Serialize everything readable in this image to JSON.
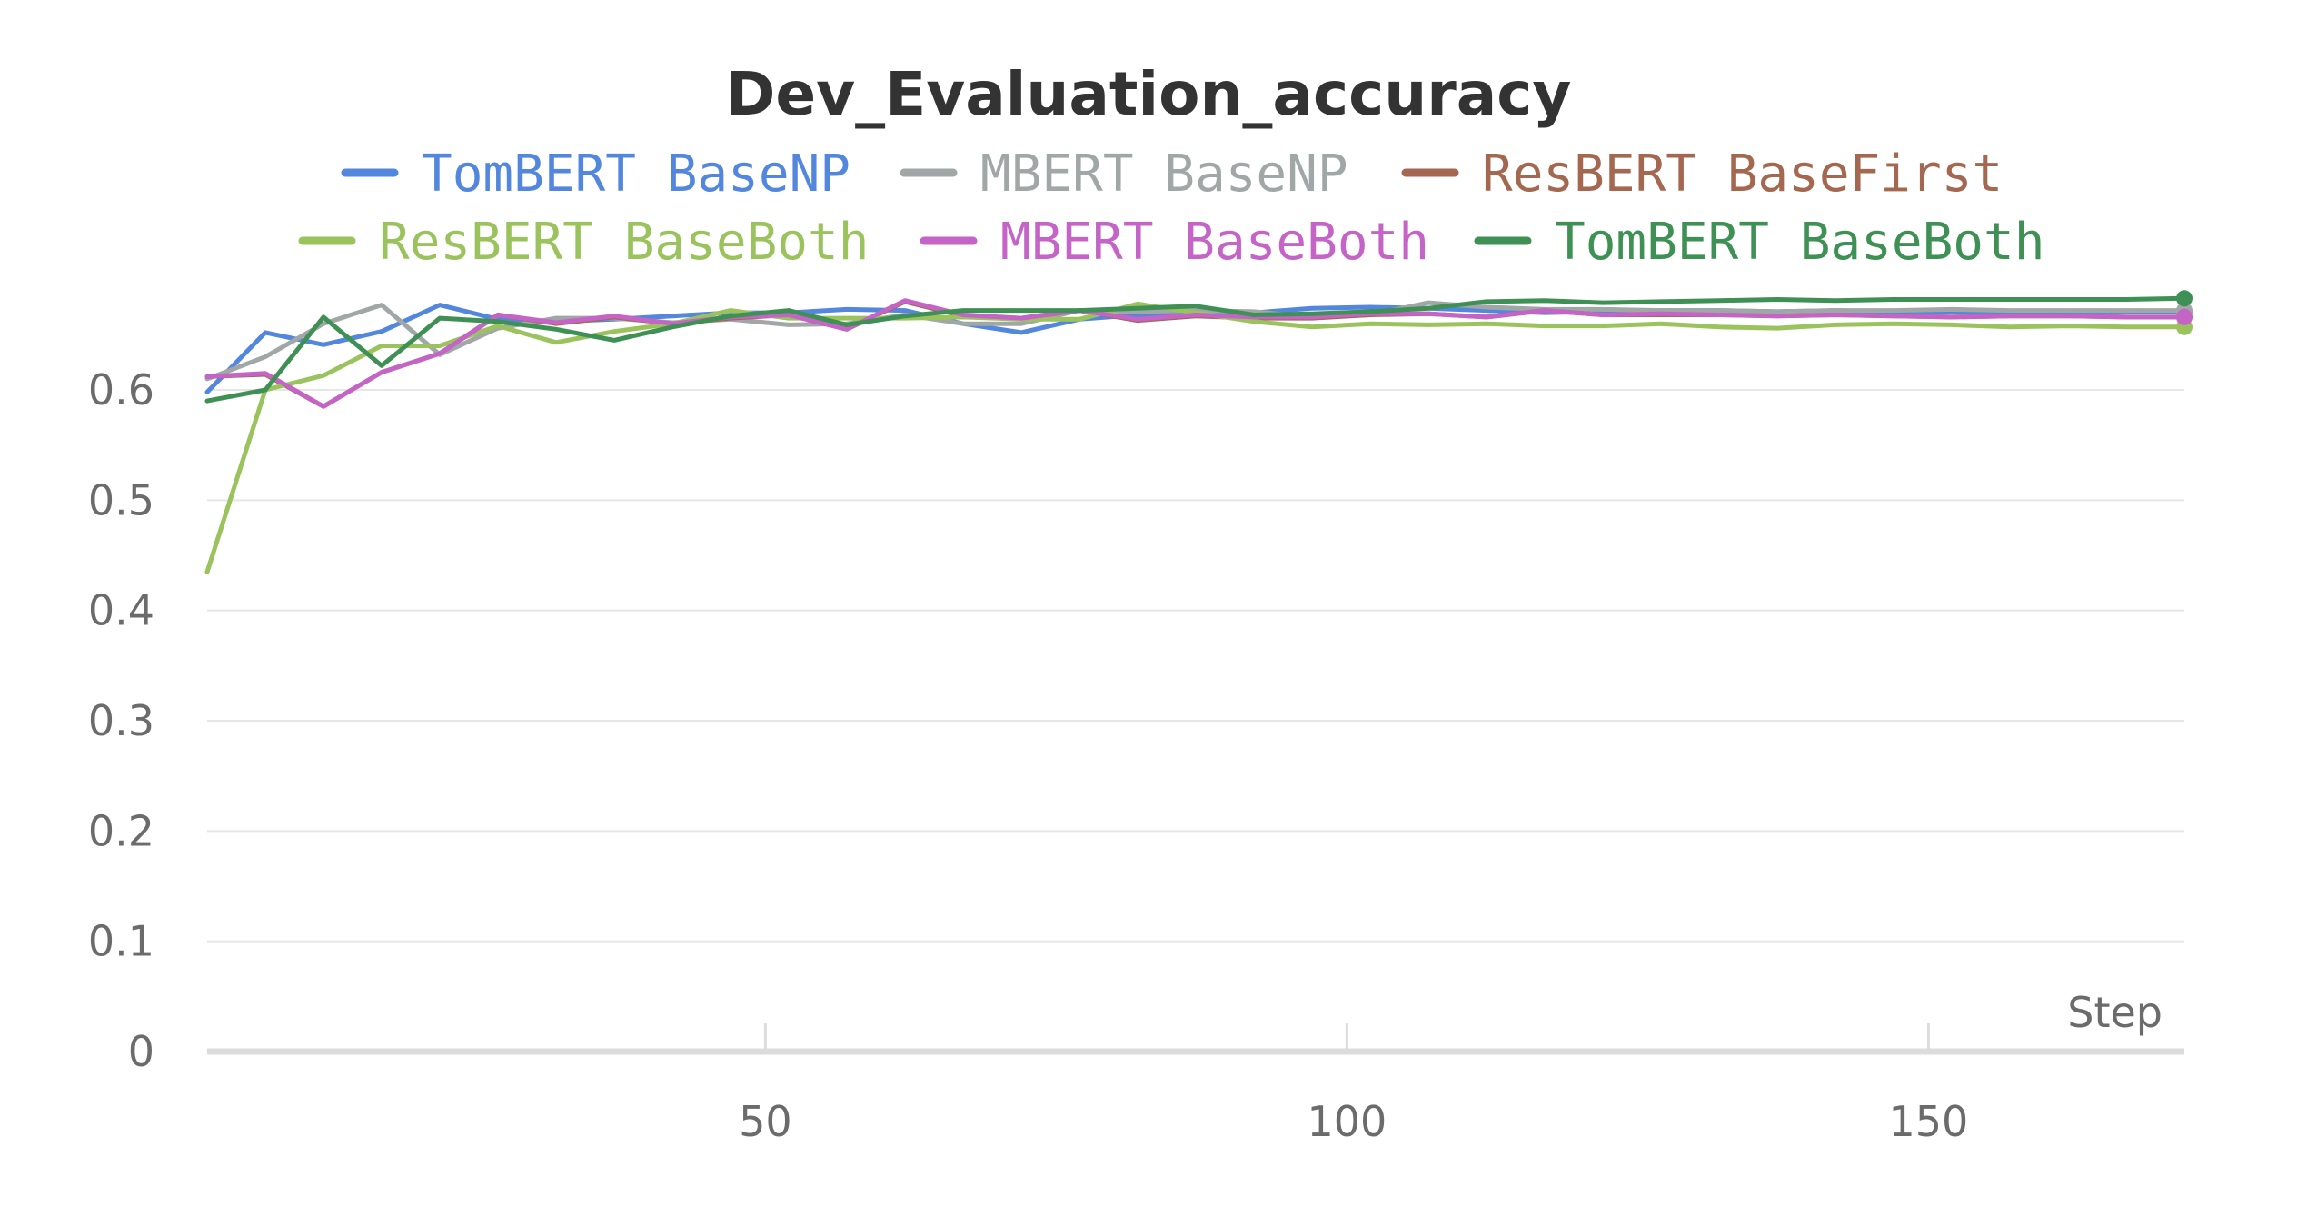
{
  "chart_data": {
    "type": "line",
    "title": "Dev_Evaluation_accuracy",
    "xlabel": "Step",
    "ylabel": "",
    "xlim": [
      2,
      172
    ],
    "ylim": [
      0,
      0.72
    ],
    "x_ticks": [
      "50",
      "100",
      "150"
    ],
    "x_tick_values": [
      50,
      100,
      150
    ],
    "y_ticks": [
      "0",
      "0.1",
      "0.2",
      "0.3",
      "0.4",
      "0.5",
      "0.6"
    ],
    "y_tick_values": [
      0,
      0.1,
      0.2,
      0.3,
      0.4,
      0.5,
      0.6
    ],
    "grid": true,
    "legend_position": "top",
    "x": [
      2,
      7,
      12,
      17,
      22,
      27,
      32,
      37,
      42,
      47,
      52,
      57,
      62,
      67,
      72,
      77,
      82,
      87,
      92,
      97,
      102,
      107,
      112,
      117,
      122,
      127,
      132,
      137,
      142,
      147,
      152,
      157,
      162,
      167,
      172
    ],
    "series": [
      {
        "name": "TomBERT BaseNP",
        "color": "#5387dd",
        "values": [
          0.598,
          0.652,
          0.641,
          0.653,
          0.677,
          0.664,
          0.662,
          0.664,
          0.667,
          0.67,
          0.67,
          0.673,
          0.672,
          0.66,
          0.652,
          0.664,
          0.668,
          0.67,
          0.67,
          0.674,
          0.675,
          0.674,
          0.672,
          0.67,
          0.671,
          0.672,
          0.672,
          0.671,
          0.672,
          0.671,
          0.671,
          0.671,
          0.67,
          0.671,
          0.671
        ]
      },
      {
        "name": "MBERT BaseNP",
        "color": "#a1a7a7",
        "values": [
          0.61,
          0.63,
          0.66,
          0.677,
          0.632,
          0.656,
          0.665,
          0.665,
          0.661,
          0.664,
          0.659,
          0.66,
          0.668,
          0.66,
          0.66,
          0.672,
          0.671,
          0.672,
          0.671,
          0.666,
          0.668,
          0.679,
          0.675,
          0.673,
          0.673,
          0.672,
          0.672,
          0.671,
          0.672,
          0.672,
          0.673,
          0.672,
          0.672,
          0.672,
          0.672
        ]
      },
      {
        "name": "ResBERT BaseFirst",
        "color": "#a46750",
        "values": [
          0.612,
          0.614,
          0.585,
          0.616,
          0.633,
          0.668,
          0.66,
          0.666,
          0.66,
          0.665,
          0.668,
          0.655,
          0.68,
          0.667,
          0.665,
          0.672,
          0.663,
          0.667,
          0.665,
          0.665,
          0.668,
          0.669,
          0.666,
          0.672,
          0.668,
          0.668,
          0.668,
          0.667,
          0.668,
          0.667,
          0.666,
          0.667,
          0.667,
          0.666,
          0.666
        ]
      },
      {
        "name": "ResBERT BaseBoth",
        "color": "#9bc35d",
        "values": [
          0.435,
          0.6,
          0.613,
          0.64,
          0.64,
          0.658,
          0.643,
          0.653,
          0.66,
          0.672,
          0.665,
          0.665,
          0.665,
          0.666,
          0.664,
          0.664,
          0.678,
          0.67,
          0.662,
          0.657,
          0.66,
          0.659,
          0.66,
          0.658,
          0.658,
          0.66,
          0.657,
          0.656,
          0.659,
          0.66,
          0.659,
          0.657,
          0.658,
          0.657,
          0.657
        ]
      },
      {
        "name": "MBERT BaseBoth",
        "color": "#c564c7",
        "values": [
          0.612,
          0.615,
          0.585,
          0.616,
          0.633,
          0.668,
          0.661,
          0.667,
          0.66,
          0.666,
          0.668,
          0.655,
          0.681,
          0.668,
          0.665,
          0.672,
          0.664,
          0.668,
          0.666,
          0.666,
          0.669,
          0.669,
          0.666,
          0.672,
          0.668,
          0.669,
          0.668,
          0.667,
          0.668,
          0.667,
          0.666,
          0.667,
          0.667,
          0.666,
          0.666
        ]
      },
      {
        "name": "TomBERT BaseBoth",
        "color": "#3f9055",
        "values": [
          0.59,
          0.6,
          0.666,
          0.622,
          0.665,
          0.662,
          0.655,
          0.645,
          0.657,
          0.667,
          0.672,
          0.659,
          0.667,
          0.672,
          0.672,
          0.672,
          0.674,
          0.676,
          0.668,
          0.669,
          0.671,
          0.674,
          0.68,
          0.681,
          0.679,
          0.68,
          0.681,
          0.682,
          0.681,
          0.682,
          0.682,
          0.682,
          0.682,
          0.682,
          0.683
        ]
      }
    ]
  }
}
